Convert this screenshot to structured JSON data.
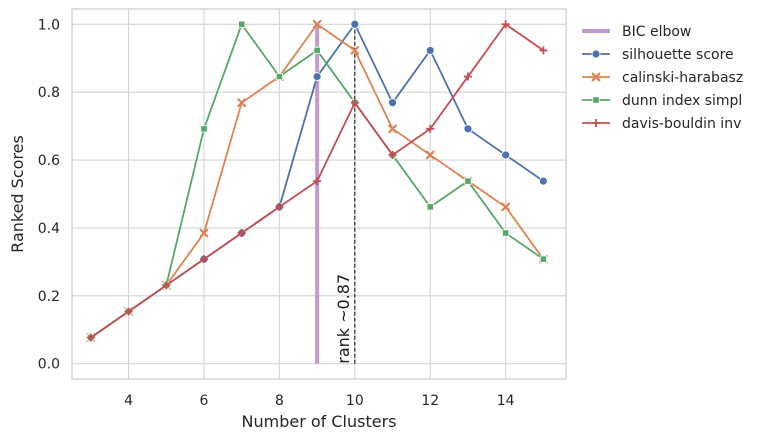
{
  "chart_data": {
    "type": "line",
    "title": "",
    "xlabel": "Number of Clusters",
    "ylabel": "Ranked Scores",
    "xlim": [
      2.5,
      15.6
    ],
    "ylim": [
      -0.045,
      1.045
    ],
    "xticks": [
      4,
      6,
      8,
      10,
      12,
      14
    ],
    "yticks": [
      0.0,
      0.2,
      0.4,
      0.6,
      0.8,
      1.0
    ],
    "grid": true,
    "legend_position": "outside-right-top",
    "x": [
      3,
      4,
      5,
      6,
      7,
      8,
      9,
      10,
      11,
      12,
      13,
      14,
      15
    ],
    "series": [
      {
        "name": "silhouette score",
        "color": "#4c72b0",
        "marker": "circle",
        "values": [
          0.077,
          0.154,
          0.231,
          0.308,
          0.385,
          0.462,
          0.846,
          1.0,
          0.769,
          0.923,
          0.692,
          0.615,
          0.538
        ]
      },
      {
        "name": "calinski-harabasz",
        "color": "#dd8452",
        "marker": "x",
        "values": [
          0.077,
          0.154,
          0.231,
          0.385,
          0.769,
          0.846,
          1.0,
          0.923,
          0.692,
          0.615,
          0.538,
          0.462,
          0.308
        ]
      },
      {
        "name": "dunn index simpl",
        "color": "#55a868",
        "marker": "square",
        "values": [
          0.077,
          0.154,
          0.231,
          0.692,
          1.0,
          0.846,
          0.923,
          0.769,
          0.615,
          0.462,
          0.538,
          0.385,
          0.308
        ]
      },
      {
        "name": "davis-bouldin inv",
        "color": "#c44e52",
        "marker": "plus",
        "values": [
          0.077,
          0.154,
          0.231,
          0.308,
          0.385,
          0.462,
          0.538,
          0.769,
          0.615,
          0.692,
          0.846,
          1.0,
          0.923
        ]
      }
    ],
    "bic_elbow": {
      "name": "BIC elbow",
      "x": 9,
      "y_range": [
        0,
        1.0
      ],
      "color": "#c49bd0"
    },
    "vertical_marker": {
      "x": 10,
      "y_range": [
        0,
        1.0
      ],
      "style": "dashed",
      "color": "#000000"
    },
    "annotation": {
      "text": "rank ~0.87",
      "x": 10,
      "y": 0.0,
      "rotation": -90
    }
  }
}
